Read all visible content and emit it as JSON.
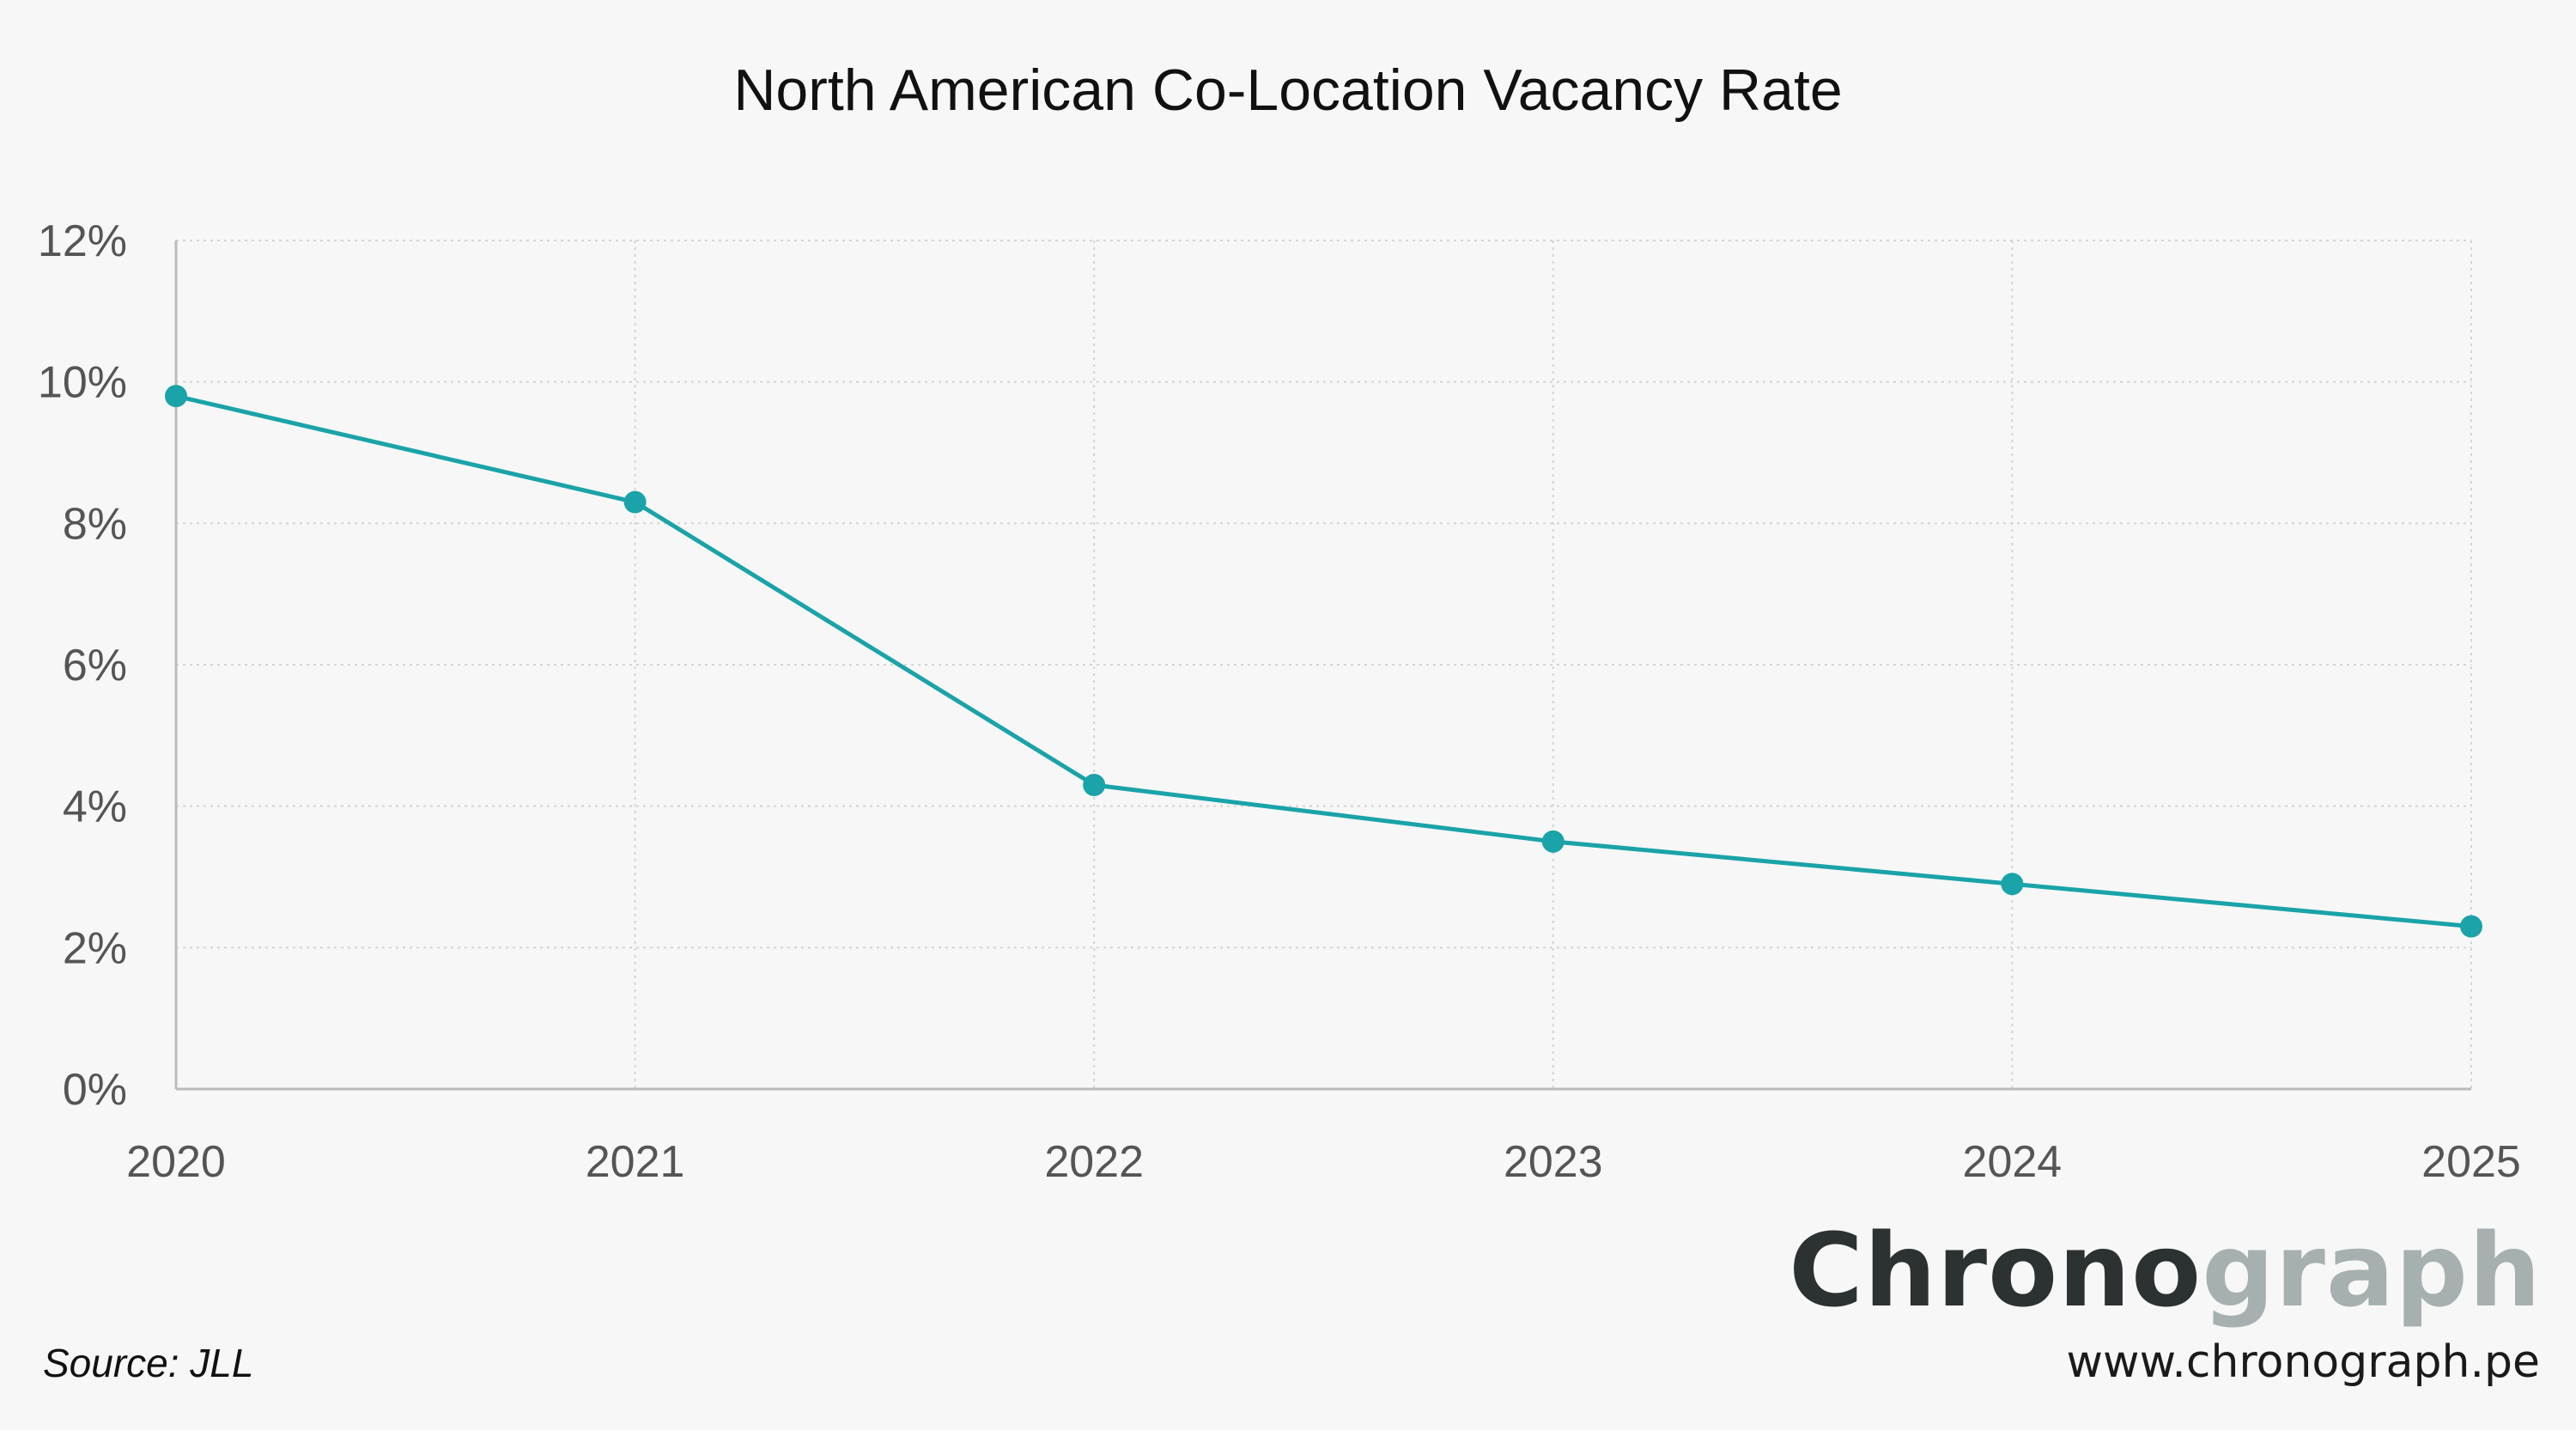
{
  "chart_data": {
    "type": "line",
    "title": "North American Co-Location Vacancy Rate",
    "xlabel": "",
    "ylabel": "",
    "x": [
      "2020",
      "2021",
      "2022",
      "2023",
      "2024",
      "2025"
    ],
    "series": [
      {
        "values": [
          9.8,
          8.3,
          4.3,
          3.5,
          2.9,
          2.3
        ]
      }
    ],
    "ylim": [
      0,
      12
    ],
    "yticks": [
      0,
      2,
      4,
      6,
      8,
      10,
      12
    ],
    "ytick_labels": [
      "0%",
      "2%",
      "4%",
      "6%",
      "8%",
      "10%",
      "12%"
    ],
    "grid": true,
    "legend": "none",
    "colors": {
      "line": "#1aa3a8",
      "marker": "#1aa3a8"
    }
  },
  "footer": {
    "source": "Source: JLL",
    "logo_dark": "Chrono",
    "logo_light": "graph",
    "url": "www.chronograph.pe"
  }
}
